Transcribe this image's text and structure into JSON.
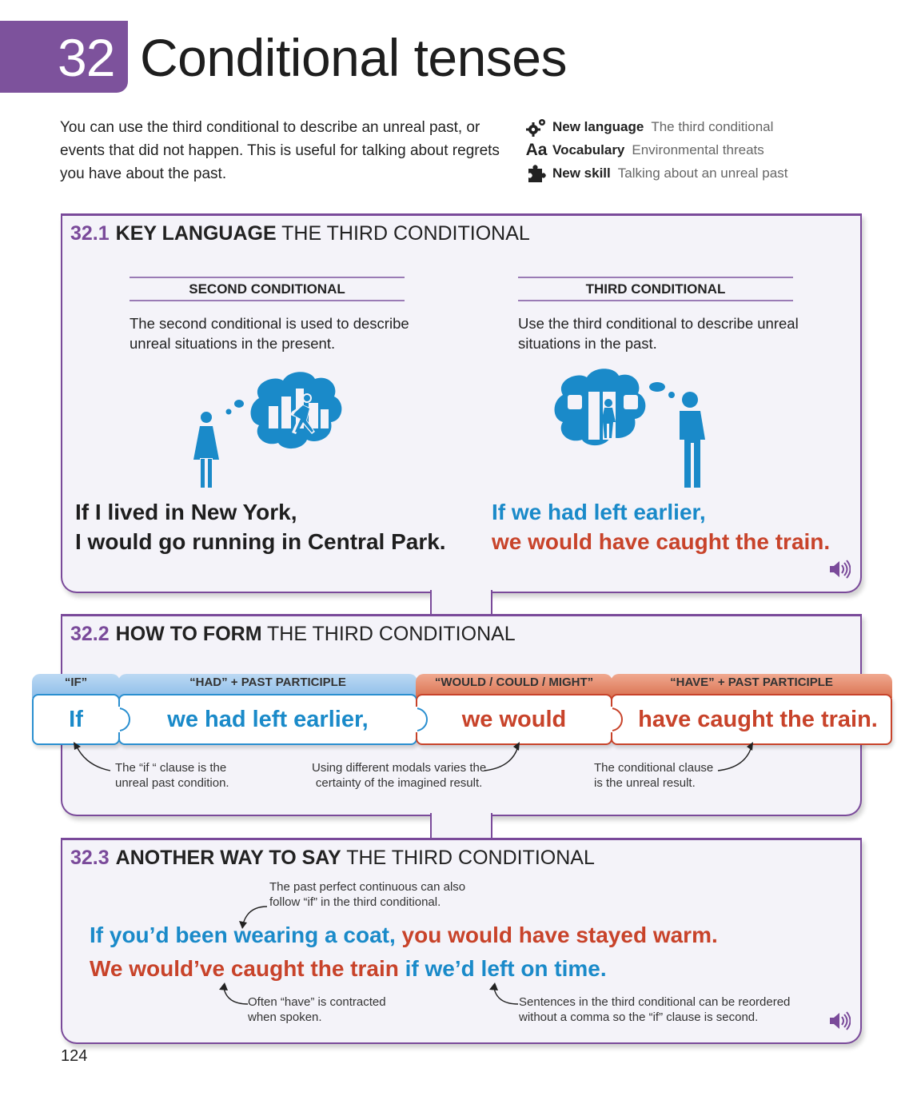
{
  "header": {
    "chapter_number": "32",
    "chapter_title": "Conditional tenses",
    "intro": "You can use the third conditional to describe an unreal past, or events that did not happen. This is useful for talking about regrets you have about the past.",
    "meta": [
      {
        "icon": "gears-icon",
        "label": "New language",
        "value": "The third conditional"
      },
      {
        "icon": "Aa",
        "label": "Vocabulary",
        "value": "Environmental threats"
      },
      {
        "icon": "puzzle-icon",
        "label": "New skill",
        "value": "Talking about an unreal past"
      }
    ]
  },
  "section1": {
    "number": "32.1",
    "keyword": "KEY LANGUAGE",
    "rest": "THE THIRD CONDITIONAL",
    "left": {
      "heading": "SECOND CONDITIONAL",
      "text": "The second conditional is used to describe unreal situations in the present.",
      "line1": "If I lived in New York,",
      "line2": "I would go running in Central Park."
    },
    "right": {
      "heading": "THIRD CONDITIONAL",
      "text": "Use the third conditional to describe unreal situations in the past.",
      "line1": "If we had left earlier,",
      "line2": "we would have caught the train."
    }
  },
  "section2": {
    "number": "32.2",
    "keyword": "HOW TO FORM",
    "rest": "THE THIRD CONDITIONAL",
    "labels": [
      "“IF”",
      "“HAD” + PAST PARTICIPLE",
      "“WOULD / COULD / MIGHT”",
      "“HAVE” + PAST PARTICIPLE"
    ],
    "pieces": [
      "If",
      "we had left earlier,",
      "we would",
      "have caught the train."
    ],
    "notes": [
      "The “if “ clause is the\nunreal past condition.",
      "Using different modals varies the\ncertainty of the imagined result.",
      "The conditional clause\nis the unreal result."
    ]
  },
  "section3": {
    "number": "32.3",
    "keyword": "ANOTHER WAY TO SAY",
    "rest": "THE THIRD CONDITIONAL",
    "note_top": "The past perfect continuous can also\nfollow “if” in the third conditional.",
    "s1_blue": "If you’d been wearing a coat,",
    "s1_red": "you would have stayed warm.",
    "s2_red": "We would’ve caught the train",
    "s2_blue": "if we’d left on time.",
    "note_bl": "Often “have” is contracted\nwhen spoken.",
    "note_br": "Sentences in the third conditional can be reordered\nwithout a comma so the “if” clause is second."
  },
  "page_number": "124",
  "colors": {
    "purple": "#7d529c",
    "blue": "#1a8ac9",
    "red": "#c8432a",
    "panel": "#f4f3f9"
  }
}
